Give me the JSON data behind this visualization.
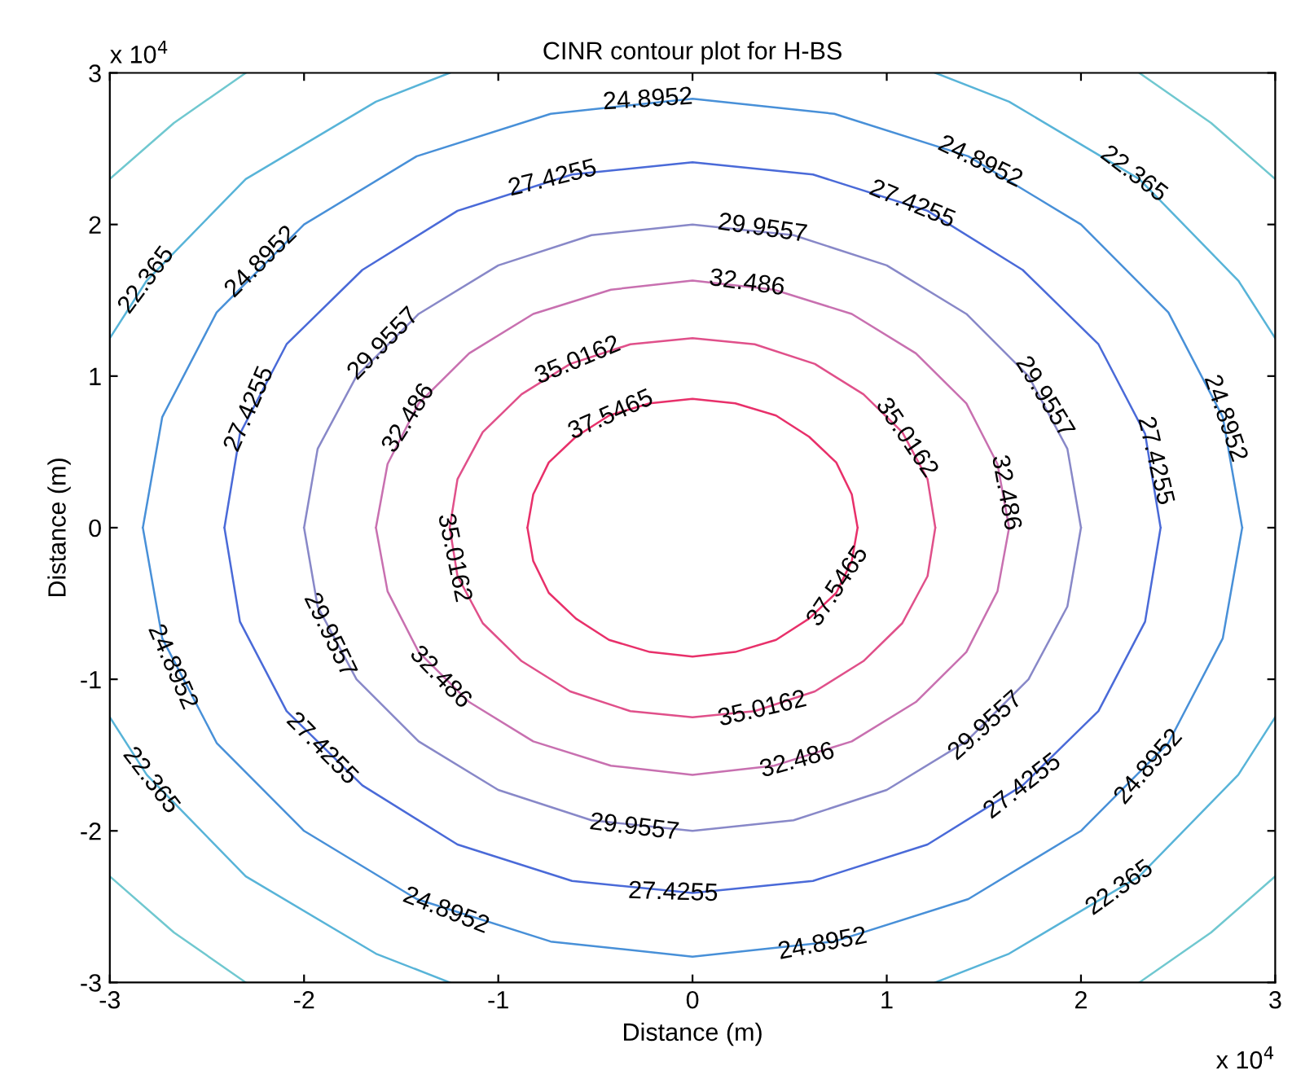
{
  "chart_data": {
    "type": "line",
    "title": "CINR contour plot for H-BS",
    "xlabel": "Distance (m)",
    "ylabel": "Distance (m)",
    "xlim": [
      -3,
      3
    ],
    "ylim": [
      -3,
      3
    ],
    "xticks": [
      -3,
      -2,
      -1,
      0,
      1,
      2,
      3
    ],
    "yticks": [
      -3,
      -2,
      -1,
      0,
      1,
      2,
      3
    ],
    "grid": false,
    "line_style": "solid",
    "series": [
      {
        "color": "#e8306a",
        "x": [
          -0.85,
          -0.82,
          -0.74,
          -0.6,
          -0.43,
          -0.22,
          0,
          0.22,
          0.43,
          0.6,
          0.74,
          0.82,
          0.85,
          null,
          -0.85,
          -0.82,
          -0.74,
          -0.6,
          -0.43,
          -0.22,
          0,
          0.22,
          0.43,
          0.6,
          0.74,
          0.82,
          0.85
        ],
        "values": [
          0,
          0.22,
          0.43,
          0.6,
          0.74,
          0.82,
          0.85,
          0.82,
          0.74,
          0.6,
          0.43,
          0.22,
          0,
          null,
          0,
          -0.22,
          -0.43,
          -0.6,
          -0.74,
          -0.82,
          -0.85,
          -0.82,
          -0.74,
          -0.6,
          -0.43,
          -0.22,
          0
        ]
      },
      {
        "color": "#e0508a",
        "x": [
          -1.25,
          -1.21,
          -1.08,
          -0.88,
          -0.63,
          -0.32,
          0,
          0.32,
          0.63,
          0.88,
          1.08,
          1.21,
          1.25,
          null,
          -1.25,
          -1.21,
          -1.08,
          -0.88,
          -0.63,
          -0.32,
          0,
          0.32,
          0.63,
          0.88,
          1.08,
          1.21,
          1.25
        ],
        "values": [
          0,
          0.32,
          0.63,
          0.88,
          1.08,
          1.21,
          1.25,
          1.21,
          1.08,
          0.88,
          0.63,
          0.32,
          0,
          null,
          0,
          -0.32,
          -0.63,
          -0.88,
          -1.08,
          -1.21,
          -1.25,
          -1.21,
          -1.08,
          -0.88,
          -0.63,
          -0.32,
          0
        ]
      },
      {
        "color": "#c870b0",
        "x": [
          -1.63,
          -1.57,
          -1.41,
          -1.15,
          -0.82,
          -0.42,
          0,
          0.42,
          0.82,
          1.15,
          1.41,
          1.57,
          1.63,
          null,
          -1.63,
          -1.57,
          -1.41,
          -1.15,
          -0.82,
          -0.42,
          0,
          0.42,
          0.82,
          1.15,
          1.41,
          1.57,
          1.63
        ],
        "values": [
          0,
          0.42,
          0.82,
          1.15,
          1.41,
          1.57,
          1.63,
          1.57,
          1.41,
          1.15,
          0.82,
          0.42,
          0,
          null,
          0,
          -0.42,
          -0.82,
          -1.15,
          -1.41,
          -1.57,
          -1.63,
          -1.57,
          -1.41,
          -1.15,
          -0.82,
          -0.42,
          0
        ]
      },
      {
        "color": "#8888c8",
        "x": [
          -2,
          -1.93,
          -1.73,
          -1.41,
          -1,
          -0.52,
          0,
          0.52,
          1,
          1.41,
          1.73,
          1.93,
          2,
          null,
          -2,
          -1.93,
          -1.73,
          -1.41,
          -1,
          -0.52,
          0,
          0.52,
          1,
          1.41,
          1.73,
          1.93,
          2
        ],
        "values": [
          0,
          0.52,
          1,
          1.41,
          1.73,
          1.93,
          2,
          1.93,
          1.73,
          1.41,
          1,
          0.52,
          0,
          null,
          0,
          -0.52,
          -1,
          -1.41,
          -1.73,
          -1.93,
          -2,
          -1.93,
          -1.73,
          -1.41,
          -1,
          -0.52,
          0
        ]
      },
      {
        "color": "#4a6ad8",
        "x": [
          -2.41,
          -2.33,
          -2.09,
          -1.7,
          -1.21,
          -0.62,
          0,
          0.62,
          1.21,
          1.7,
          2.09,
          2.33,
          2.41,
          null,
          -2.41,
          -2.33,
          -2.09,
          -1.7,
          -1.21,
          -0.62,
          0,
          0.62,
          1.21,
          1.7,
          2.09,
          2.33,
          2.41
        ],
        "values": [
          0,
          0.62,
          1.21,
          1.7,
          2.09,
          2.33,
          2.41,
          2.33,
          2.09,
          1.7,
          1.21,
          0.62,
          0,
          null,
          0,
          -0.62,
          -1.21,
          -1.7,
          -2.09,
          -2.33,
          -2.41,
          -2.33,
          -2.09,
          -1.7,
          -1.21,
          -0.62,
          0
        ]
      },
      {
        "color": "#4890d8",
        "x": [
          -2.83,
          -2.73,
          -2.45,
          -2,
          -1.42,
          -0.73,
          0,
          0.73,
          1.42,
          2,
          2.45,
          2.73,
          2.83,
          null,
          -2.83,
          -2.73,
          -2.45,
          -2,
          -1.42,
          -0.73,
          0,
          0.73,
          1.42,
          2,
          2.45,
          2.73,
          2.83
        ],
        "values": [
          0,
          0.73,
          1.42,
          2,
          2.45,
          2.73,
          2.83,
          2.73,
          2.45,
          2,
          1.42,
          0.73,
          0,
          null,
          0,
          -0.73,
          -1.42,
          -2,
          -2.45,
          -2.73,
          -2.83,
          -2.73,
          -2.45,
          -2,
          -1.42,
          -0.73,
          0
        ]
      },
      {
        "color": "#58b4d8",
        "x": [
          -3.0,
          -2.81,
          -2.3,
          -1.63,
          -1.25,
          null,
          1.25,
          1.63,
          2.3,
          2.81,
          3.0,
          null,
          -3.0,
          -2.81,
          -2.3,
          -1.63,
          -1.25,
          null,
          1.25,
          1.63,
          2.3,
          2.81,
          3.0
        ],
        "values": [
          1.25,
          1.63,
          2.3,
          2.81,
          3.0,
          null,
          3.0,
          2.81,
          2.3,
          1.63,
          1.25,
          null,
          -1.25,
          -1.63,
          -2.3,
          -2.81,
          -3.0,
          null,
          -3.0,
          -2.81,
          -2.3,
          -1.63,
          -1.25
        ]
      },
      {
        "color": "#70c8d0",
        "x": [
          -3.0,
          -2.67,
          -2.3,
          null,
          2.3,
          2.67,
          3.0,
          null,
          -3.0,
          -2.67,
          -2.3,
          null,
          2.3,
          2.67,
          3.0
        ],
        "values": [
          2.3,
          2.67,
          3.0,
          null,
          3.0,
          2.67,
          2.3,
          null,
          -2.3,
          -2.67,
          -3.0,
          null,
          -3.0,
          -2.67,
          -2.3
        ]
      }
    ],
    "annotations": [
      "x 10$^{4}$",
      "x 10$^{4}$",
      {
        "text": "24.8952",
        "x": -0.23,
        "y": 2.82
      },
      {
        "text": "27.4255",
        "x": -0.72,
        "y": 2.3
      },
      {
        "text": "29.9557",
        "x": 0.36,
        "y": 1.97
      },
      {
        "text": "32.486",
        "x": 0.28,
        "y": 1.61
      },
      {
        "text": "35.0162",
        "x": -0.59,
        "y": 1.1
      },
      {
        "text": "37.5465",
        "x": -0.42,
        "y": 0.74
      },
      {
        "text": "24.8952",
        "x": 1.48,
        "y": 2.41
      },
      {
        "text": "22.365",
        "x": 2.27,
        "y": 2.33
      },
      {
        "text": "27.4255",
        "x": 1.13,
        "y": 2.13
      },
      {
        "text": "22.365",
        "x": -2.81,
        "y": 1.63
      },
      {
        "text": "24.8952",
        "x": -2.22,
        "y": 1.75
      },
      {
        "text": "27.4255",
        "x": -2.28,
        "y": 0.78
      },
      {
        "text": "29.9557",
        "x": -1.59,
        "y": 1.21
      },
      {
        "text": "32.486",
        "x": -1.46,
        "y": 0.72
      },
      {
        "text": "35.0162",
        "x": 1.1,
        "y": 0.59
      },
      {
        "text": "32.486",
        "x": 1.61,
        "y": 0.23
      },
      {
        "text": "29.9557",
        "x": 1.81,
        "y": 0.86
      },
      {
        "text": "27.4255",
        "x": 2.38,
        "y": 0.44
      },
      {
        "text": "24.8952",
        "x": 2.74,
        "y": 0.72
      },
      {
        "text": "35.0162",
        "x": -1.23,
        "y": -0.2
      },
      {
        "text": "29.9557",
        "x": -1.87,
        "y": -0.71
      },
      {
        "text": "32.486",
        "x": -1.3,
        "y": -0.99
      },
      {
        "text": "24.8952",
        "x": -2.68,
        "y": -0.92
      },
      {
        "text": "27.4255",
        "x": -1.91,
        "y": -1.46
      },
      {
        "text": "22.365",
        "x": -2.79,
        "y": -1.67
      },
      {
        "text": "24.8952",
        "x": -1.27,
        "y": -2.53
      },
      {
        "text": "29.9557",
        "x": -0.3,
        "y": -1.98
      },
      {
        "text": "27.4255",
        "x": -0.1,
        "y": -2.41
      },
      {
        "text": "37.5465",
        "x": 0.75,
        "y": -0.39
      },
      {
        "text": "35.0162",
        "x": 0.36,
        "y": -1.2
      },
      {
        "text": "32.486",
        "x": 0.54,
        "y": -1.54
      },
      {
        "text": "29.9557",
        "x": 1.51,
        "y": -1.31
      },
      {
        "text": "27.4255",
        "x": 1.7,
        "y": -1.71
      },
      {
        "text": "24.8952",
        "x": 2.35,
        "y": -1.58
      },
      {
        "text": "22.365",
        "x": 2.2,
        "y": -2.38
      },
      {
        "text": "24.8952",
        "x": 0.67,
        "y": -2.75
      }
    ]
  }
}
